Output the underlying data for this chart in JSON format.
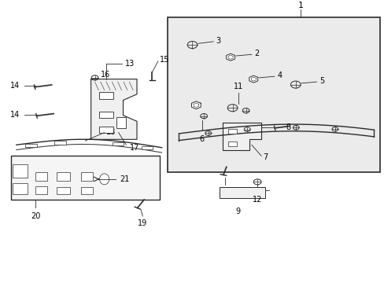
{
  "bg_color": "#ffffff",
  "line_color": "#2a2a2a",
  "label_color": "#000000",
  "inset_bg": "#e8e8e8"
}
